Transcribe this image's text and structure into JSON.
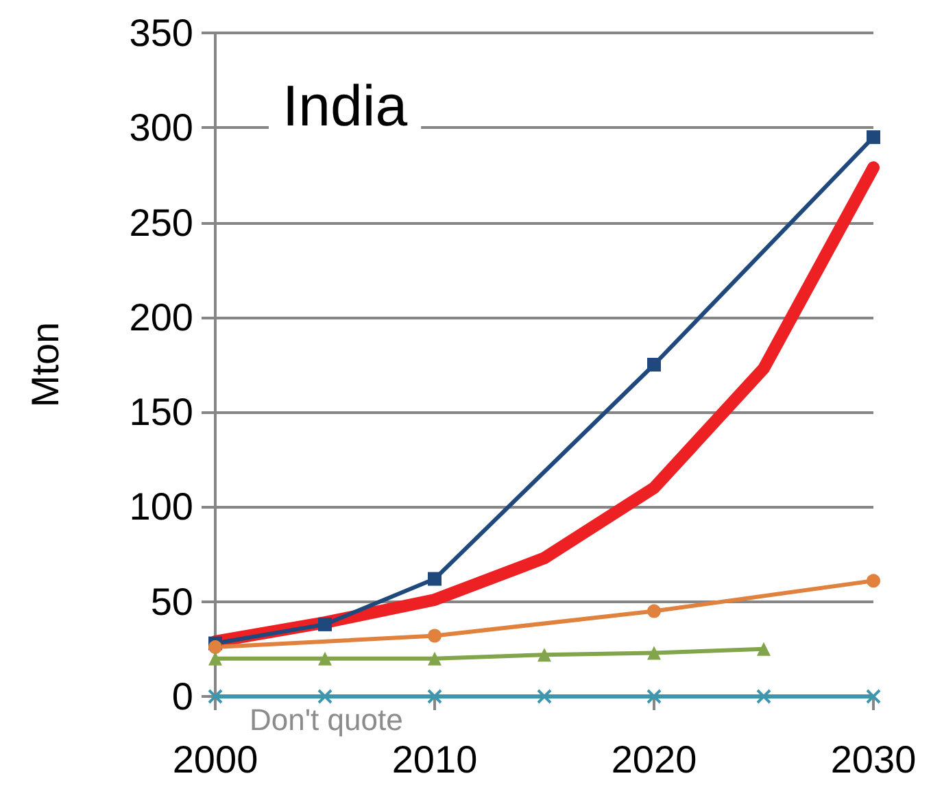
{
  "chart_data": {
    "type": "line",
    "title": "India",
    "ylabel": "Mton",
    "annotations": [
      "Don't quote"
    ],
    "xlim": [
      2000,
      2030
    ],
    "xticks": [
      2000,
      2010,
      2020,
      2030
    ],
    "ylim": [
      0,
      350
    ],
    "yticks": [
      0,
      50,
      100,
      150,
      200,
      250,
      300,
      350
    ],
    "grid": "y",
    "series": [
      {
        "color": "#1f497d",
        "marker": "square",
        "x": [
          2000,
          2005,
          2010,
          2020,
          2030
        ],
        "values": [
          28,
          38,
          62,
          175,
          295
        ]
      },
      {
        "color": "#ed2024",
        "marker": "none",
        "x": [
          2000,
          2005,
          2010,
          2015,
          2020,
          2025,
          2030
        ],
        "values": [
          29,
          39,
          51,
          73,
          110,
          173,
          279
        ]
      },
      {
        "color": "#e0823d",
        "marker": "circle",
        "x": [
          2000,
          2010,
          2020,
          2030
        ],
        "values": [
          26,
          32,
          45,
          61
        ]
      },
      {
        "color": "#82a44a",
        "marker": "triangle",
        "x": [
          2000,
          2005,
          2010,
          2015,
          2020,
          2025
        ],
        "values": [
          20,
          20,
          20,
          22,
          23,
          25
        ]
      },
      {
        "color": "#3e96ad",
        "marker": "cross",
        "x": [
          2000,
          2005,
          2010,
          2015,
          2020,
          2025,
          2030
        ],
        "values": [
          0,
          0,
          0,
          0,
          0,
          0,
          0
        ]
      }
    ]
  }
}
